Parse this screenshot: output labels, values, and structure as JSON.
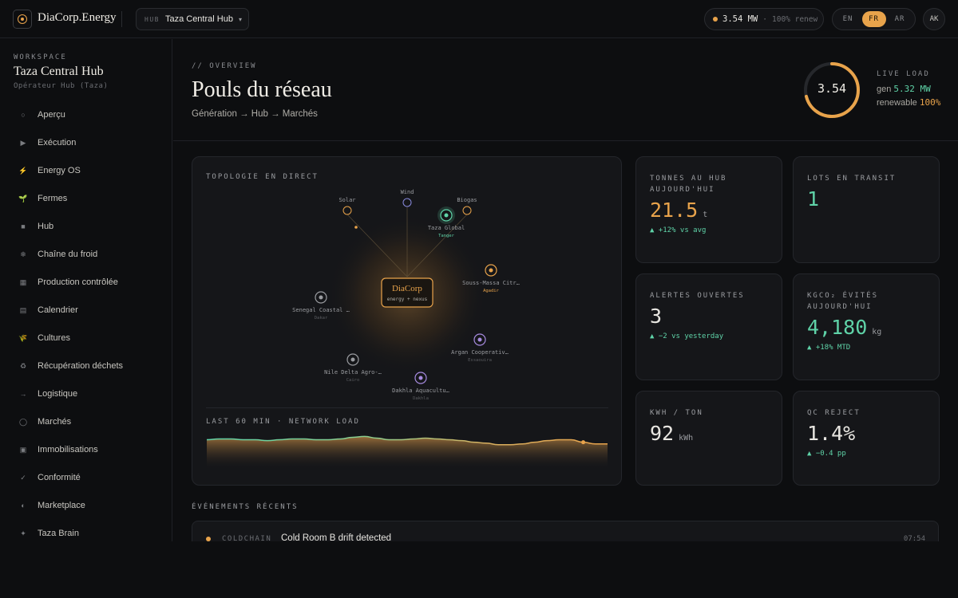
{
  "brand": {
    "name": "DiaCorp.Energy",
    "icon": "target-icon",
    "accent": "#e8a34b"
  },
  "hub_select": {
    "label": "HUB",
    "value": "Taza Central Hub",
    "chevron": "▾"
  },
  "power": {
    "mw": "3.54 MW",
    "sep": "·",
    "renew": "100% renew"
  },
  "languages": [
    {
      "code": "EN",
      "active": false
    },
    {
      "code": "FR",
      "active": true
    },
    {
      "code": "AR",
      "active": false
    }
  ],
  "avatar": "AK",
  "workspace": {
    "label": "WORKSPACE",
    "name": "Taza Central Hub",
    "role": "Opérateur Hub (Taza)"
  },
  "nav": [
    {
      "icon": "circle-icon",
      "glyph": "○",
      "label": "Aperçu"
    },
    {
      "icon": "play-icon",
      "glyph": "▶",
      "label": "Exécution"
    },
    {
      "icon": "bolt-icon",
      "glyph": "⚡",
      "label": "Energy OS"
    },
    {
      "icon": "sprout-icon",
      "glyph": "🌱",
      "label": "Fermes"
    },
    {
      "icon": "square-icon",
      "glyph": "■",
      "label": "Hub"
    },
    {
      "icon": "snowflake-icon",
      "glyph": "❄",
      "label": "Chaîne du froid"
    },
    {
      "icon": "grid-icon",
      "glyph": "▦",
      "label": "Production contrôlée"
    },
    {
      "icon": "calendar-icon",
      "glyph": "▤",
      "label": "Calendrier"
    },
    {
      "icon": "wheat-icon",
      "glyph": "🌾",
      "label": "Cultures"
    },
    {
      "icon": "recycle-icon",
      "glyph": "♻",
      "label": "Récupération déchets"
    },
    {
      "icon": "arrow-icon",
      "glyph": "→",
      "label": "Logistique"
    },
    {
      "icon": "ring-icon",
      "glyph": "◯",
      "label": "Marchés"
    },
    {
      "icon": "box-icon",
      "glyph": "▣",
      "label": "Immobilisations"
    },
    {
      "icon": "check-icon",
      "glyph": "✓",
      "label": "Conformité"
    },
    {
      "icon": "half-circle-icon",
      "glyph": "◐",
      "label": "Marketplace"
    },
    {
      "icon": "sparkle-icon",
      "glyph": "✦",
      "label": "Taza Brain"
    }
  ],
  "overview": {
    "label": "// OVERVIEW",
    "title": "Pouls du réseau",
    "subtitle": "Génération → Hub → Marchés"
  },
  "live": {
    "value": "3.54",
    "gauge_fraction": 0.71,
    "label": "LIVE LOAD",
    "gen_label": "gen",
    "gen_value": "5.32 MW",
    "renew_label": "renewable",
    "renew_value": "100%"
  },
  "topology": {
    "label": "TOPOLOGIE EN DIRECT",
    "center": {
      "name": "DiaCorp",
      "sub": "energy + nexus"
    },
    "nodes": [
      {
        "name": "Solar",
        "sub": "",
        "color": "#e8a34b",
        "type": "ring"
      },
      {
        "name": "Wind",
        "sub": "",
        "color": "#8a8ce0",
        "type": "ring"
      },
      {
        "name": "Biogas",
        "sub": "",
        "color": "#e8a34b",
        "type": "ring"
      },
      {
        "name": "Taza Global",
        "sub": "Tanger",
        "color": "#5fd3a8",
        "type": "hub"
      },
      {
        "name": "Souss-Massa Citr…",
        "sub": "Agadir",
        "color": "#e8a34b",
        "type": "farm"
      },
      {
        "name": "Senegal Coastal …",
        "sub": "Dakar",
        "color": "#9a9ca0",
        "type": "farm"
      },
      {
        "name": "Argan Cooperativ…",
        "sub": "Essaouira",
        "color": "#a78be0",
        "type": "farm"
      },
      {
        "name": "Nile Delta Agro-…",
        "sub": "Cairo",
        "color": "#9a9ca0",
        "type": "farm"
      },
      {
        "name": "Dakhla Aquacultu…",
        "sub": "Dakhla",
        "color": "#a78be0",
        "type": "farm"
      }
    ],
    "load_label": "LAST 60 MIN · NETWORK LOAD",
    "load_values": [
      0.72,
      0.74,
      0.74,
      0.72,
      0.72,
      0.7,
      0.72,
      0.74,
      0.74,
      0.72,
      0.72,
      0.74,
      0.78,
      0.8,
      0.76,
      0.72,
      0.72,
      0.74,
      0.76,
      0.74,
      0.72,
      0.7,
      0.66,
      0.64,
      0.6,
      0.6,
      0.62,
      0.66,
      0.7,
      0.72,
      0.72,
      0.66,
      0.62,
      0.62
    ]
  },
  "kpis": [
    {
      "label": "TONNES AU HUB AUJOURD'HUI",
      "value": "21.5",
      "unit": "t",
      "delta": "▲ +12% vs avg",
      "color": "#e8a34b"
    },
    {
      "label": "LOTS EN TRANSIT",
      "value": "1",
      "unit": "",
      "delta": "",
      "color": "#5fd3a8"
    },
    {
      "label": "ALERTES OUVERTES",
      "value": "3",
      "unit": "",
      "delta": "▲ −2 vs yesterday",
      "color": "#e8e6e1"
    },
    {
      "label": "KGCO₂ ÉVITÉS AUJOURD'HUI",
      "value": "4,180",
      "unit": "kg",
      "delta": "▲ +18% MTD",
      "color": "#5fd3a8"
    },
    {
      "label": "KWH / TON",
      "value": "92",
      "unit": "kWh",
      "delta": "",
      "color": "#e8e6e1"
    },
    {
      "label": "QC REJECT",
      "value": "1.4%",
      "unit": "",
      "delta": "▲ −0.4 pp",
      "color": "#e8e6e1"
    }
  ],
  "events": {
    "label": "ÉVÉNEMENTS RÉCENTS",
    "items": [
      {
        "tag": "COLDCHAIN",
        "text": "Cold Room B drift detected",
        "time": "07:54",
        "color": "#e8a34b"
      }
    ]
  }
}
